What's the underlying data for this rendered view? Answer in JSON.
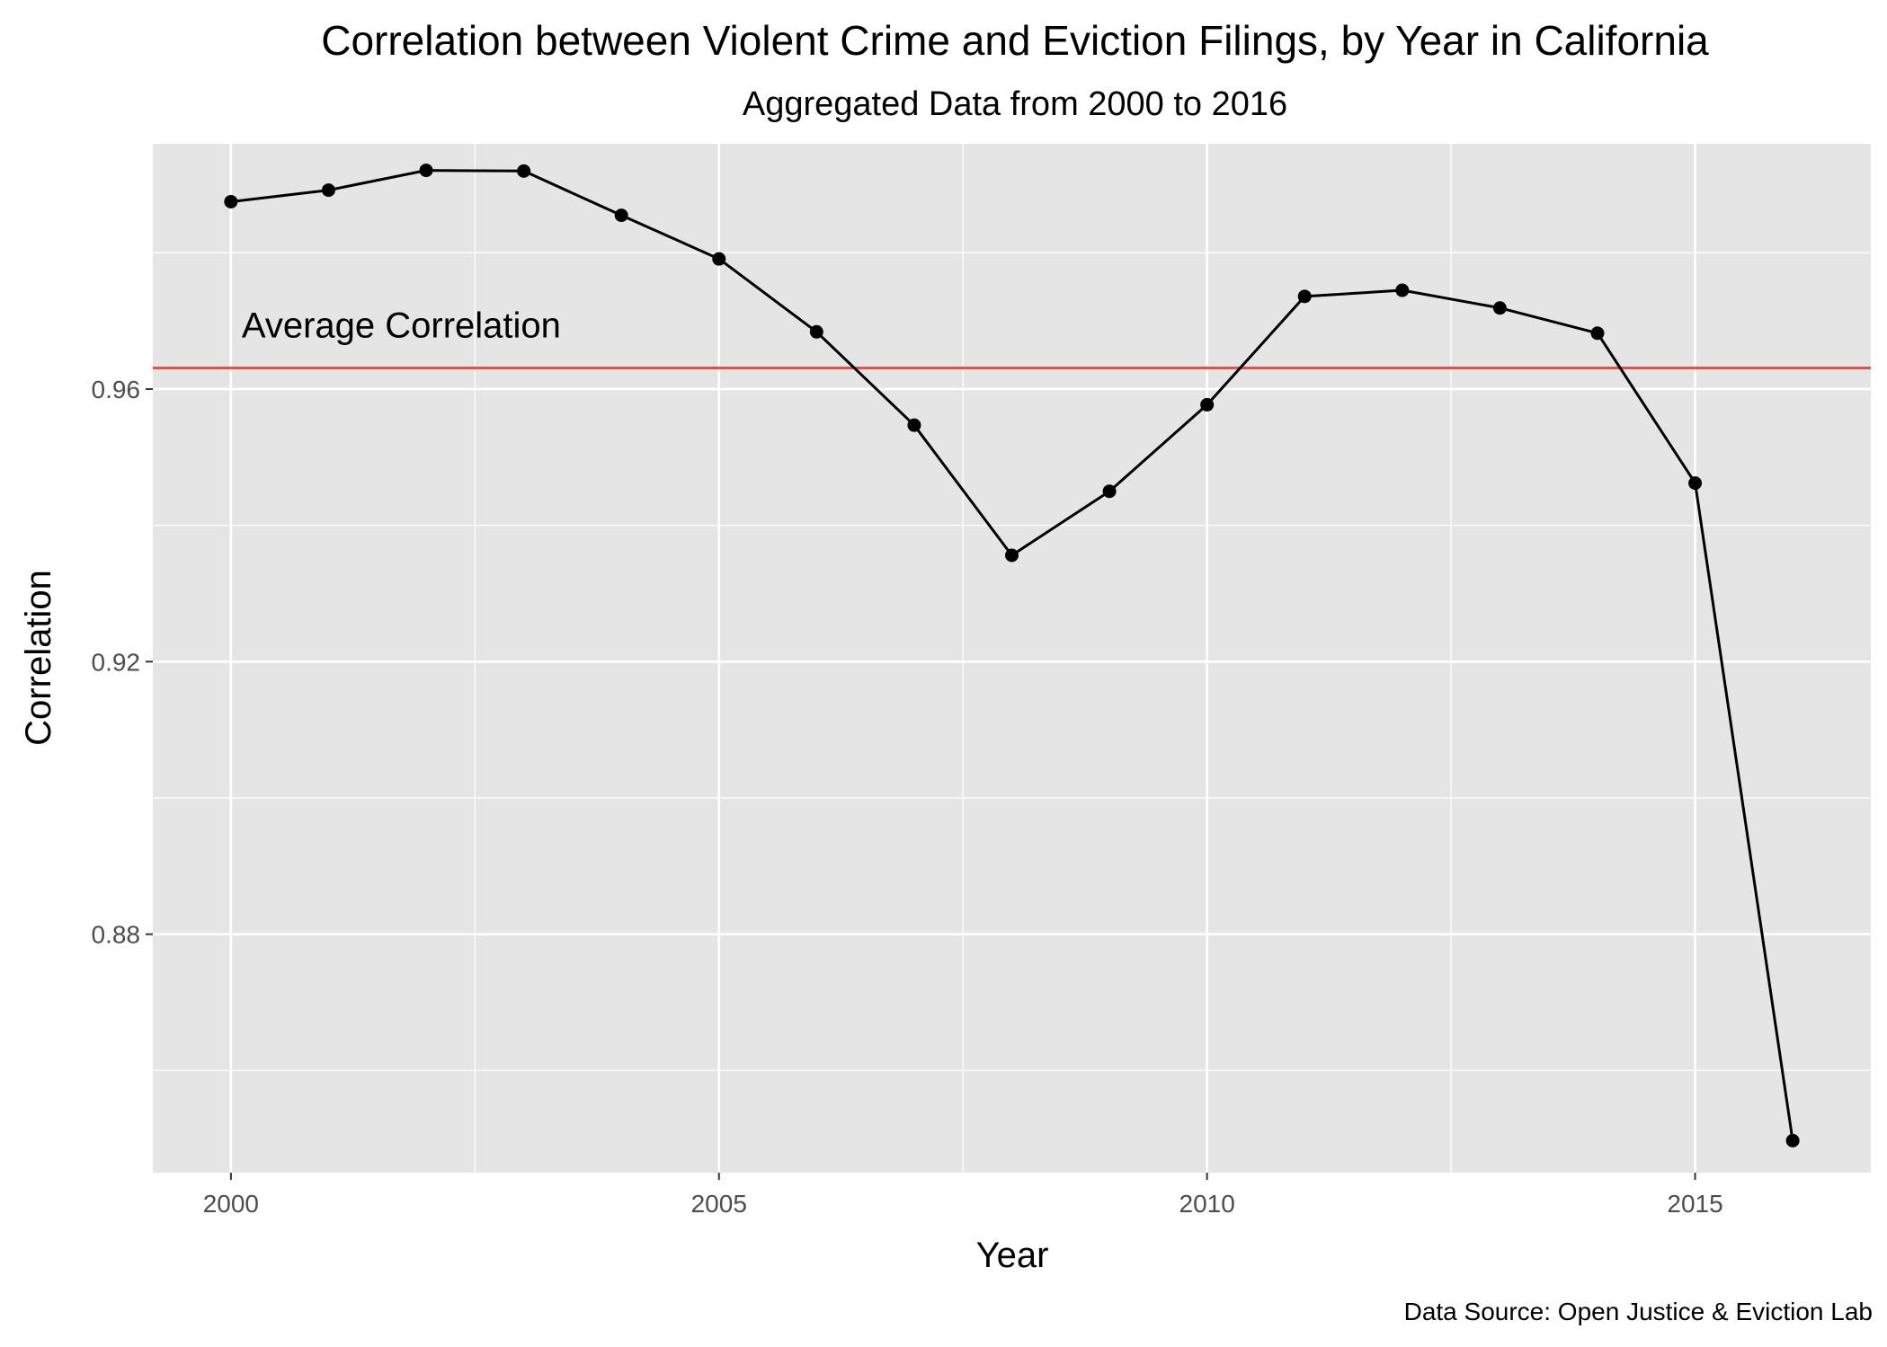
{
  "chart_data": {
    "type": "line",
    "title": "Correlation between Violent Crime and Eviction Filings, by Year in California",
    "subtitle": "Aggregated Data from 2000 to 2016",
    "xlabel": "Year",
    "ylabel": "Correlation",
    "caption": "Data Source: Open Justice & Eviction Lab",
    "x": [
      2000,
      2001,
      2002,
      2003,
      2004,
      2005,
      2006,
      2007,
      2008,
      2009,
      2010,
      2011,
      2012,
      2013,
      2014,
      2015,
      2016
    ],
    "series": [
      {
        "values": [
          0.9875,
          0.9892,
          0.9921,
          0.992,
          0.9855,
          0.9791,
          0.9684,
          0.9547,
          0.9356,
          0.945,
          0.9577,
          0.9736,
          0.9745,
          0.9719,
          0.9682,
          0.9462,
          0.8497
        ]
      }
    ],
    "x_ticks": [
      "2000",
      "2005",
      "2010",
      "2015"
    ],
    "y_ticks": [
      "0.88",
      "0.92",
      "0.96"
    ],
    "xlim": [
      1999.2,
      2016.8
    ],
    "ylim": [
      0.845,
      0.996
    ],
    "reference_line": {
      "label": "Average Correlation",
      "value": 0.9631,
      "color": "#e8503f"
    },
    "grid": true,
    "colors": {
      "panel": "#e5e5e5",
      "grid": "#ffffff",
      "line": "#000000"
    }
  }
}
